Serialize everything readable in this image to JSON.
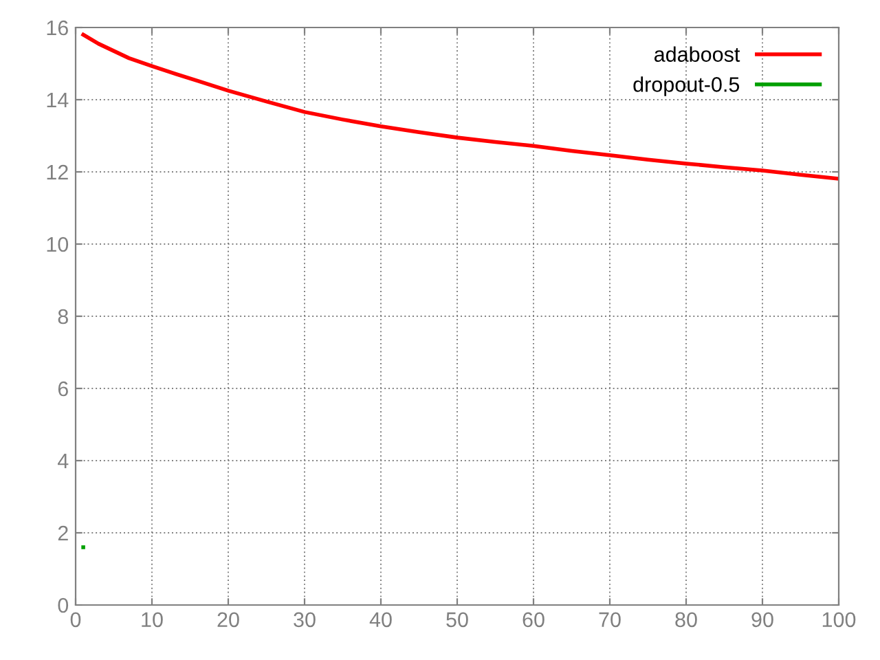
{
  "chart_data": {
    "type": "line",
    "xlim": [
      0,
      100
    ],
    "ylim": [
      0,
      16
    ],
    "xticks": [
      0,
      10,
      20,
      30,
      40,
      50,
      60,
      70,
      80,
      90,
      100
    ],
    "yticks": [
      0,
      2,
      4,
      6,
      8,
      10,
      12,
      14,
      16
    ],
    "grid": true,
    "legend": "top right",
    "series": [
      {
        "name": "adaboost",
        "color": "#ff0000",
        "x": [
          1,
          3,
          5,
          7,
          10,
          13,
          16,
          20,
          25,
          30,
          35,
          40,
          45,
          50,
          55,
          60,
          65,
          70,
          75,
          80,
          85,
          90,
          95,
          100
        ],
        "values": [
          15.8,
          15.55,
          15.35,
          15.15,
          14.93,
          14.72,
          14.52,
          14.25,
          13.95,
          13.66,
          13.45,
          13.26,
          13.1,
          12.95,
          12.83,
          12.72,
          12.58,
          12.46,
          12.34,
          12.23,
          12.13,
          12.04,
          11.92,
          11.81
        ]
      },
      {
        "name": "dropout-0.5",
        "color": "#00a000",
        "type": "scatter",
        "marker": "square",
        "x": [
          1
        ],
        "values": [
          1.6
        ]
      }
    ]
  }
}
